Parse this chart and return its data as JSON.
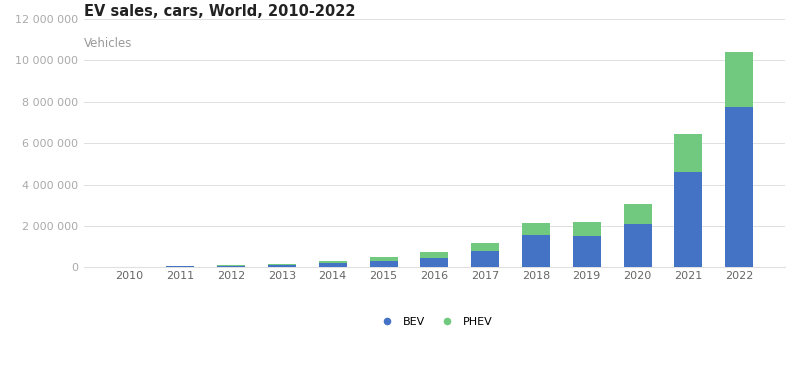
{
  "title": "EV sales, cars, World, 2010-2022",
  "subtitle": "Vehicles",
  "years": [
    2010,
    2011,
    2012,
    2013,
    2014,
    2015,
    2016,
    2017,
    2018,
    2019,
    2020,
    2021,
    2022
  ],
  "bev": [
    5000,
    40000,
    80000,
    120000,
    200000,
    300000,
    450000,
    800000,
    1560000,
    1530000,
    2100000,
    4620000,
    7770000
  ],
  "phev": [
    0,
    15000,
    30000,
    50000,
    100000,
    220000,
    290000,
    380000,
    590000,
    650000,
    980000,
    1840000,
    2650000
  ],
  "bev_color": "#4472c4",
  "phev_color": "#70c97e",
  "background_color": "#ffffff",
  "grid_color": "#e0e0e0",
  "title_fontsize": 10.5,
  "subtitle_fontsize": 8.5,
  "tick_fontsize": 8,
  "legend_fontsize": 8,
  "ylim": [
    0,
    12000000
  ],
  "yticks": [
    0,
    2000000,
    4000000,
    6000000,
    8000000,
    10000000,
    12000000
  ],
  "bar_width": 0.55,
  "legend_labels": [
    "BEV",
    "PHEV"
  ]
}
